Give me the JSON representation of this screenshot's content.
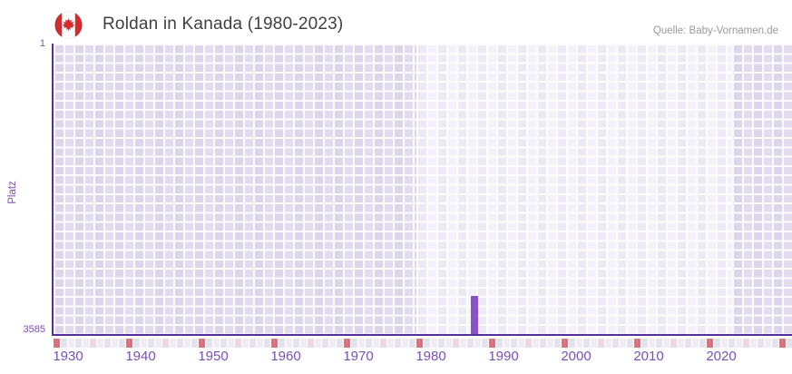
{
  "header": {
    "flag_icon": "canada-flag-icon",
    "title": "Roldan in Kanada (1980-2023)",
    "source": "Quelle: Baby-Vornamen.de"
  },
  "chart_data": {
    "type": "bar",
    "title": "Roldan in Kanada (1980-2023)",
    "xlabel": "",
    "ylabel": "Platz",
    "grid": true,
    "legend": "none",
    "y_axis": {
      "inverted": true,
      "range": [
        1,
        3585
      ],
      "tick_labels": [
        "1",
        "3585"
      ]
    },
    "x_axis": {
      "start_year": 1928,
      "end_year": 2030,
      "tick_years": [
        1930,
        1940,
        1950,
        1960,
        1970,
        1980,
        1990,
        2000,
        2010,
        2020
      ]
    },
    "series": [
      {
        "name": "Platz",
        "points": [
          {
            "year": 1986,
            "rank": 3100
          }
        ]
      }
    ],
    "light_band_years": [
      1978,
      2021.5
    ],
    "decade_strip": {
      "start_year": 1928,
      "end_year": 2029,
      "red_years": [
        1928,
        1938,
        1948,
        1958,
        1968,
        1978,
        1988,
        1998,
        2008,
        2018,
        2028
      ],
      "pink_years": [
        1933,
        1943,
        1953,
        1963,
        1973,
        1983,
        1993,
        2003,
        2013,
        2023
      ]
    }
  },
  "colors": {
    "bar": "#8b52c7",
    "axis_line": "#53309a",
    "tick_label": "#7a4fb5",
    "strip_red": "#e2707f",
    "strip_pink": "#f2d5df",
    "strip_pale_a": "#efebf7",
    "strip_pale_b": "#e7e2f2",
    "plot_dark": "#e2dcee",
    "plot_light": "#f4f1fa",
    "flag_red": "#d52b2e",
    "title_text": "#3f3f3f",
    "source_text": "#9a9a9a"
  }
}
